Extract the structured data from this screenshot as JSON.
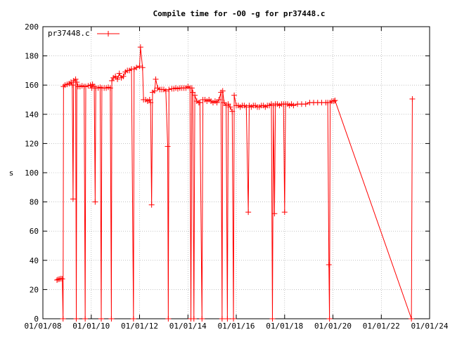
{
  "chart_data": {
    "type": "line",
    "title": "Compile time for -O0 -g for pr37448.c",
    "xlabel": "",
    "ylabel": "s",
    "x_is_date": true,
    "xlim": [
      "2008-01-01",
      "2024-01-01"
    ],
    "ylim": [
      0,
      200
    ],
    "grid": true,
    "legend_position": "top-left",
    "yticks": [
      0,
      20,
      40,
      60,
      80,
      100,
      120,
      140,
      160,
      180,
      200
    ],
    "xticks": [
      {
        "value": "2008-01-01",
        "label": "01/01/08"
      },
      {
        "value": "2010-01-01",
        "label": "01/01/10"
      },
      {
        "value": "2012-01-01",
        "label": "01/01/12"
      },
      {
        "value": "2014-01-01",
        "label": "01/01/14"
      },
      {
        "value": "2016-01-01",
        "label": "01/01/16"
      },
      {
        "value": "2018-01-01",
        "label": "01/01/18"
      },
      {
        "value": "2020-01-01",
        "label": "01/01/20"
      },
      {
        "value": "2022-01-01",
        "label": "01/01/22"
      },
      {
        "value": "2024-01-01",
        "label": "01/01/24"
      }
    ],
    "series": [
      {
        "name": "pr37448.c",
        "color": "#ff0000",
        "points": [
          [
            "2008-08-01",
            26.5
          ],
          [
            "2008-08-20",
            27
          ],
          [
            "2008-09-10",
            27.2
          ],
          [
            "2008-10-01",
            27.5
          ],
          [
            "2008-10-20",
            27.3
          ],
          [
            "2008-11-01",
            0
          ],
          [
            "2008-11-08",
            159
          ],
          [
            "2008-12-01",
            160
          ],
          [
            "2009-01-01",
            160.5
          ],
          [
            "2009-02-01",
            161
          ],
          [
            "2009-03-01",
            162
          ],
          [
            "2009-03-20",
            160
          ],
          [
            "2009-04-01",
            82
          ],
          [
            "2009-04-10",
            163
          ],
          [
            "2009-05-10",
            164
          ],
          [
            "2009-05-20",
            0
          ],
          [
            "2009-05-28",
            162
          ],
          [
            "2009-06-15",
            159
          ],
          [
            "2009-07-15",
            159
          ],
          [
            "2009-08-15",
            159.5
          ],
          [
            "2009-09-15",
            159
          ],
          [
            "2009-10-01",
            0
          ],
          [
            "2009-10-10",
            159
          ],
          [
            "2009-11-15",
            159.5
          ],
          [
            "2009-12-20",
            160
          ],
          [
            "2010-01-10",
            158
          ],
          [
            "2010-01-20",
            160.5
          ],
          [
            "2010-02-15",
            159
          ],
          [
            "2010-03-01",
            80
          ],
          [
            "2010-03-10",
            158
          ],
          [
            "2010-04-15",
            158
          ],
          [
            "2010-05-15",
            158.5
          ],
          [
            "2010-06-01",
            0
          ],
          [
            "2010-06-10",
            158
          ],
          [
            "2010-07-15",
            158
          ],
          [
            "2010-08-15",
            158
          ],
          [
            "2010-09-15",
            158.5
          ],
          [
            "2010-10-15",
            158
          ],
          [
            "2010-11-01",
            0
          ],
          [
            "2010-11-08",
            163
          ],
          [
            "2010-12-01",
            165
          ],
          [
            "2011-01-01",
            166
          ],
          [
            "2011-02-01",
            164
          ],
          [
            "2011-03-01",
            168
          ],
          [
            "2011-04-01",
            165
          ],
          [
            "2011-05-01",
            166
          ],
          [
            "2011-06-01",
            169
          ],
          [
            "2011-07-01",
            170
          ],
          [
            "2011-08-01",
            170
          ],
          [
            "2011-09-01",
            171
          ],
          [
            "2011-10-01",
            0
          ],
          [
            "2011-10-10",
            171
          ],
          [
            "2011-11-15",
            172
          ],
          [
            "2012-01-01",
            173
          ],
          [
            "2012-01-15",
            186
          ],
          [
            "2012-02-15",
            172
          ],
          [
            "2012-03-01",
            150
          ],
          [
            "2012-04-01",
            150
          ],
          [
            "2012-05-01",
            149
          ],
          [
            "2012-06-01",
            150
          ],
          [
            "2012-06-15",
            148
          ],
          [
            "2012-07-01",
            78
          ],
          [
            "2012-07-15",
            155
          ],
          [
            "2012-08-15",
            156
          ],
          [
            "2012-09-01",
            164
          ],
          [
            "2012-10-01",
            158
          ],
          [
            "2012-11-01",
            157
          ],
          [
            "2012-12-01",
            157
          ],
          [
            "2013-01-01",
            157
          ],
          [
            "2013-02-01",
            156
          ],
          [
            "2013-03-01",
            118
          ],
          [
            "2013-03-10",
            0
          ],
          [
            "2013-03-20",
            157
          ],
          [
            "2013-05-01",
            157.5
          ],
          [
            "2013-06-01",
            157.5
          ],
          [
            "2013-07-01",
            158
          ],
          [
            "2013-08-01",
            157.5
          ],
          [
            "2013-09-01",
            158
          ],
          [
            "2013-10-01",
            158
          ],
          [
            "2013-11-01",
            158
          ],
          [
            "2013-12-01",
            158
          ],
          [
            "2014-01-01",
            159
          ],
          [
            "2014-02-01",
            158
          ],
          [
            "2014-02-15",
            0
          ],
          [
            "2014-03-01",
            158
          ],
          [
            "2014-03-15",
            155
          ],
          [
            "2014-04-01",
            0
          ],
          [
            "2014-04-15",
            153
          ],
          [
            "2014-05-15",
            149
          ],
          [
            "2014-06-15",
            148
          ],
          [
            "2014-07-01",
            148
          ],
          [
            "2014-08-01",
            0
          ],
          [
            "2014-08-15",
            150
          ],
          [
            "2014-09-15",
            150
          ],
          [
            "2014-10-15",
            149
          ],
          [
            "2014-11-15",
            150
          ],
          [
            "2014-12-15",
            149
          ],
          [
            "2015-01-15",
            148
          ],
          [
            "2015-02-15",
            149
          ],
          [
            "2015-03-15",
            148
          ],
          [
            "2015-04-15",
            150
          ],
          [
            "2015-05-15",
            155
          ],
          [
            "2015-06-01",
            0
          ],
          [
            "2015-06-10",
            156
          ],
          [
            "2015-07-01",
            148
          ],
          [
            "2015-08-01",
            146
          ],
          [
            "2015-08-20",
            0
          ],
          [
            "2015-09-01",
            147
          ],
          [
            "2015-10-01",
            145
          ],
          [
            "2015-11-01",
            142
          ],
          [
            "2015-11-20",
            0
          ],
          [
            "2015-12-01",
            153
          ],
          [
            "2016-01-01",
            146
          ],
          [
            "2016-02-01",
            146
          ],
          [
            "2016-03-01",
            145
          ],
          [
            "2016-04-01",
            146
          ],
          [
            "2016-05-01",
            146
          ],
          [
            "2016-06-01",
            145
          ],
          [
            "2016-07-01",
            73
          ],
          [
            "2016-07-15",
            146
          ],
          [
            "2016-08-15",
            145
          ],
          [
            "2016-09-15",
            146
          ],
          [
            "2016-10-15",
            146
          ],
          [
            "2016-11-15",
            145
          ],
          [
            "2016-12-15",
            145
          ],
          [
            "2017-01-15",
            146
          ],
          [
            "2017-02-15",
            146
          ],
          [
            "2017-03-15",
            145
          ],
          [
            "2017-04-15",
            146
          ],
          [
            "2017-05-15",
            146
          ],
          [
            "2017-06-15",
            147
          ],
          [
            "2017-07-01",
            0
          ],
          [
            "2017-07-15",
            146
          ],
          [
            "2017-08-01",
            72
          ],
          [
            "2017-08-15",
            147
          ],
          [
            "2017-09-15",
            147
          ],
          [
            "2017-10-15",
            146
          ],
          [
            "2017-11-15",
            147
          ],
          [
            "2017-12-15",
            147
          ],
          [
            "2018-01-01",
            73
          ],
          [
            "2018-01-15",
            147
          ],
          [
            "2018-02-15",
            147
          ],
          [
            "2018-03-15",
            146
          ],
          [
            "2018-04-15",
            147
          ],
          [
            "2018-05-15",
            146
          ],
          [
            "2018-07-15",
            147
          ],
          [
            "2018-09-15",
            147
          ],
          [
            "2018-11-15",
            147
          ],
          [
            "2019-01-15",
            148
          ],
          [
            "2019-03-15",
            148
          ],
          [
            "2019-05-15",
            148
          ],
          [
            "2019-07-15",
            148
          ],
          [
            "2019-09-15",
            148
          ],
          [
            "2019-10-15",
            148
          ],
          [
            "2019-11-01",
            37
          ],
          [
            "2019-11-10",
            0
          ],
          [
            "2019-11-20",
            148
          ],
          [
            "2019-12-15",
            149
          ],
          [
            "2020-01-15",
            149
          ],
          [
            "2020-02-01",
            149.5
          ],
          [
            "2023-04-01",
            0
          ],
          [
            "2023-04-15",
            150.5
          ]
        ]
      }
    ]
  }
}
